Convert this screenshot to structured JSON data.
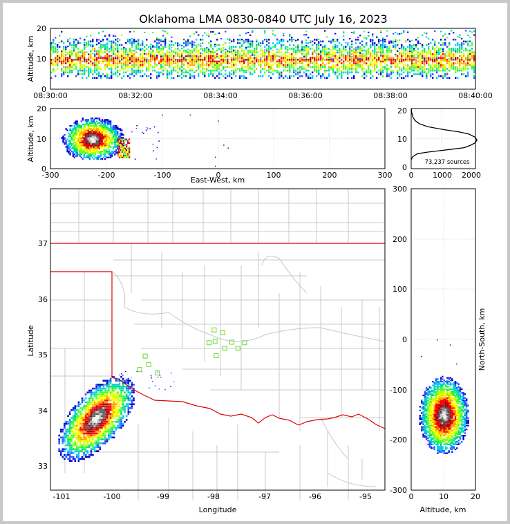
{
  "title": "Oklahoma LMA 0830-0840 UTC July 16, 2023",
  "source_count_label": "73,237 sources",
  "axes": {
    "time_height": {
      "ylabel": "Altitude, km",
      "yticks": [
        "0",
        "10",
        "20"
      ],
      "xticks": [
        "08:30:00",
        "08:32:00",
        "08:34:00",
        "08:36:00",
        "08:38:00",
        "08:40:00"
      ]
    },
    "ew_height": {
      "ylabel": "Altitude, km",
      "xlabel": "East-West, km",
      "yticks": [
        "0",
        "10",
        "20"
      ],
      "xticks": [
        "-300",
        "-200",
        "-100",
        "0",
        "100",
        "200",
        "300"
      ]
    },
    "histogram": {
      "yticks": [
        "0",
        "10",
        "20"
      ],
      "xticks": [
        "0",
        "1000",
        "2000"
      ]
    },
    "map": {
      "xlabel": "Longitude",
      "ylabel": "Latitude",
      "xticks": [
        "-101",
        "-100",
        "-99",
        "-98",
        "-97",
        "-96",
        "-95"
      ],
      "yticks": [
        "33",
        "34",
        "35",
        "36",
        "37"
      ]
    },
    "ns_height": {
      "ylabel": "North-South, km",
      "xlabel": "Altitude, km",
      "yticks": [
        "300",
        "200",
        "100",
        "0",
        "-100",
        "-200",
        "-300"
      ],
      "xticks": [
        "0",
        "10",
        "20"
      ]
    }
  },
  "chart_data": [
    {
      "type": "heatmap",
      "panel": "time-height",
      "x_range": [
        "08:30:00",
        "08:40:00"
      ],
      "ylim": [
        0,
        20
      ],
      "sources_altitude_band_km": [
        4,
        17
      ],
      "peak_altitude_km": 10
    },
    {
      "type": "heatmap",
      "panel": "east-west vs altitude",
      "xlim": [
        -300,
        300
      ],
      "ylim": [
        0,
        20
      ],
      "core": {
        "x_km": -225,
        "altitude_km": 10
      },
      "extent_km": [
        -290,
        -160
      ]
    },
    {
      "type": "line",
      "panel": "altitude histogram",
      "xlim": [
        0,
        2000
      ],
      "ylim": [
        0,
        20
      ],
      "x": [
        0,
        50,
        200,
        500,
        900,
        1300,
        1650,
        1850,
        1990,
        2050,
        1980,
        1800,
        1500,
        1000,
        500,
        250,
        120,
        60,
        30,
        10,
        5
      ],
      "y": [
        3,
        4,
        5,
        5.5,
        6,
        6.5,
        7,
        7.8,
        8.6,
        9.5,
        10.5,
        11.5,
        12.2,
        13,
        14,
        15,
        16,
        17,
        18,
        19,
        20
      ]
    },
    {
      "type": "heatmap",
      "panel": "map",
      "xlim": [
        -101.2,
        -94.6
      ],
      "ylim": [
        32.6,
        38
      ],
      "core": {
        "lon": -100.3,
        "lat": 33.9
      },
      "station_color": "#7ee04a",
      "state_line_color": "#e00000",
      "stations": [
        [
          -97.97,
          35.47
        ],
        [
          -97.8,
          35.42
        ],
        [
          -98.07,
          35.24
        ],
        [
          -97.95,
          35.27
        ],
        [
          -97.62,
          35.25
        ],
        [
          -97.37,
          35.24
        ],
        [
          -97.5,
          35.14
        ],
        [
          -97.76,
          35.14
        ],
        [
          -97.93,
          35.01
        ],
        [
          -99.33,
          35
        ],
        [
          -99.26,
          34.85
        ],
        [
          -99.44,
          34.76
        ],
        [
          -99.09,
          34.7
        ]
      ]
    },
    {
      "type": "heatmap",
      "panel": "altitude vs north-south",
      "xlim": [
        0,
        20
      ],
      "ylim": [
        -300,
        300
      ],
      "core": {
        "altitude_km": 10,
        "ns_km": -150
      }
    }
  ]
}
